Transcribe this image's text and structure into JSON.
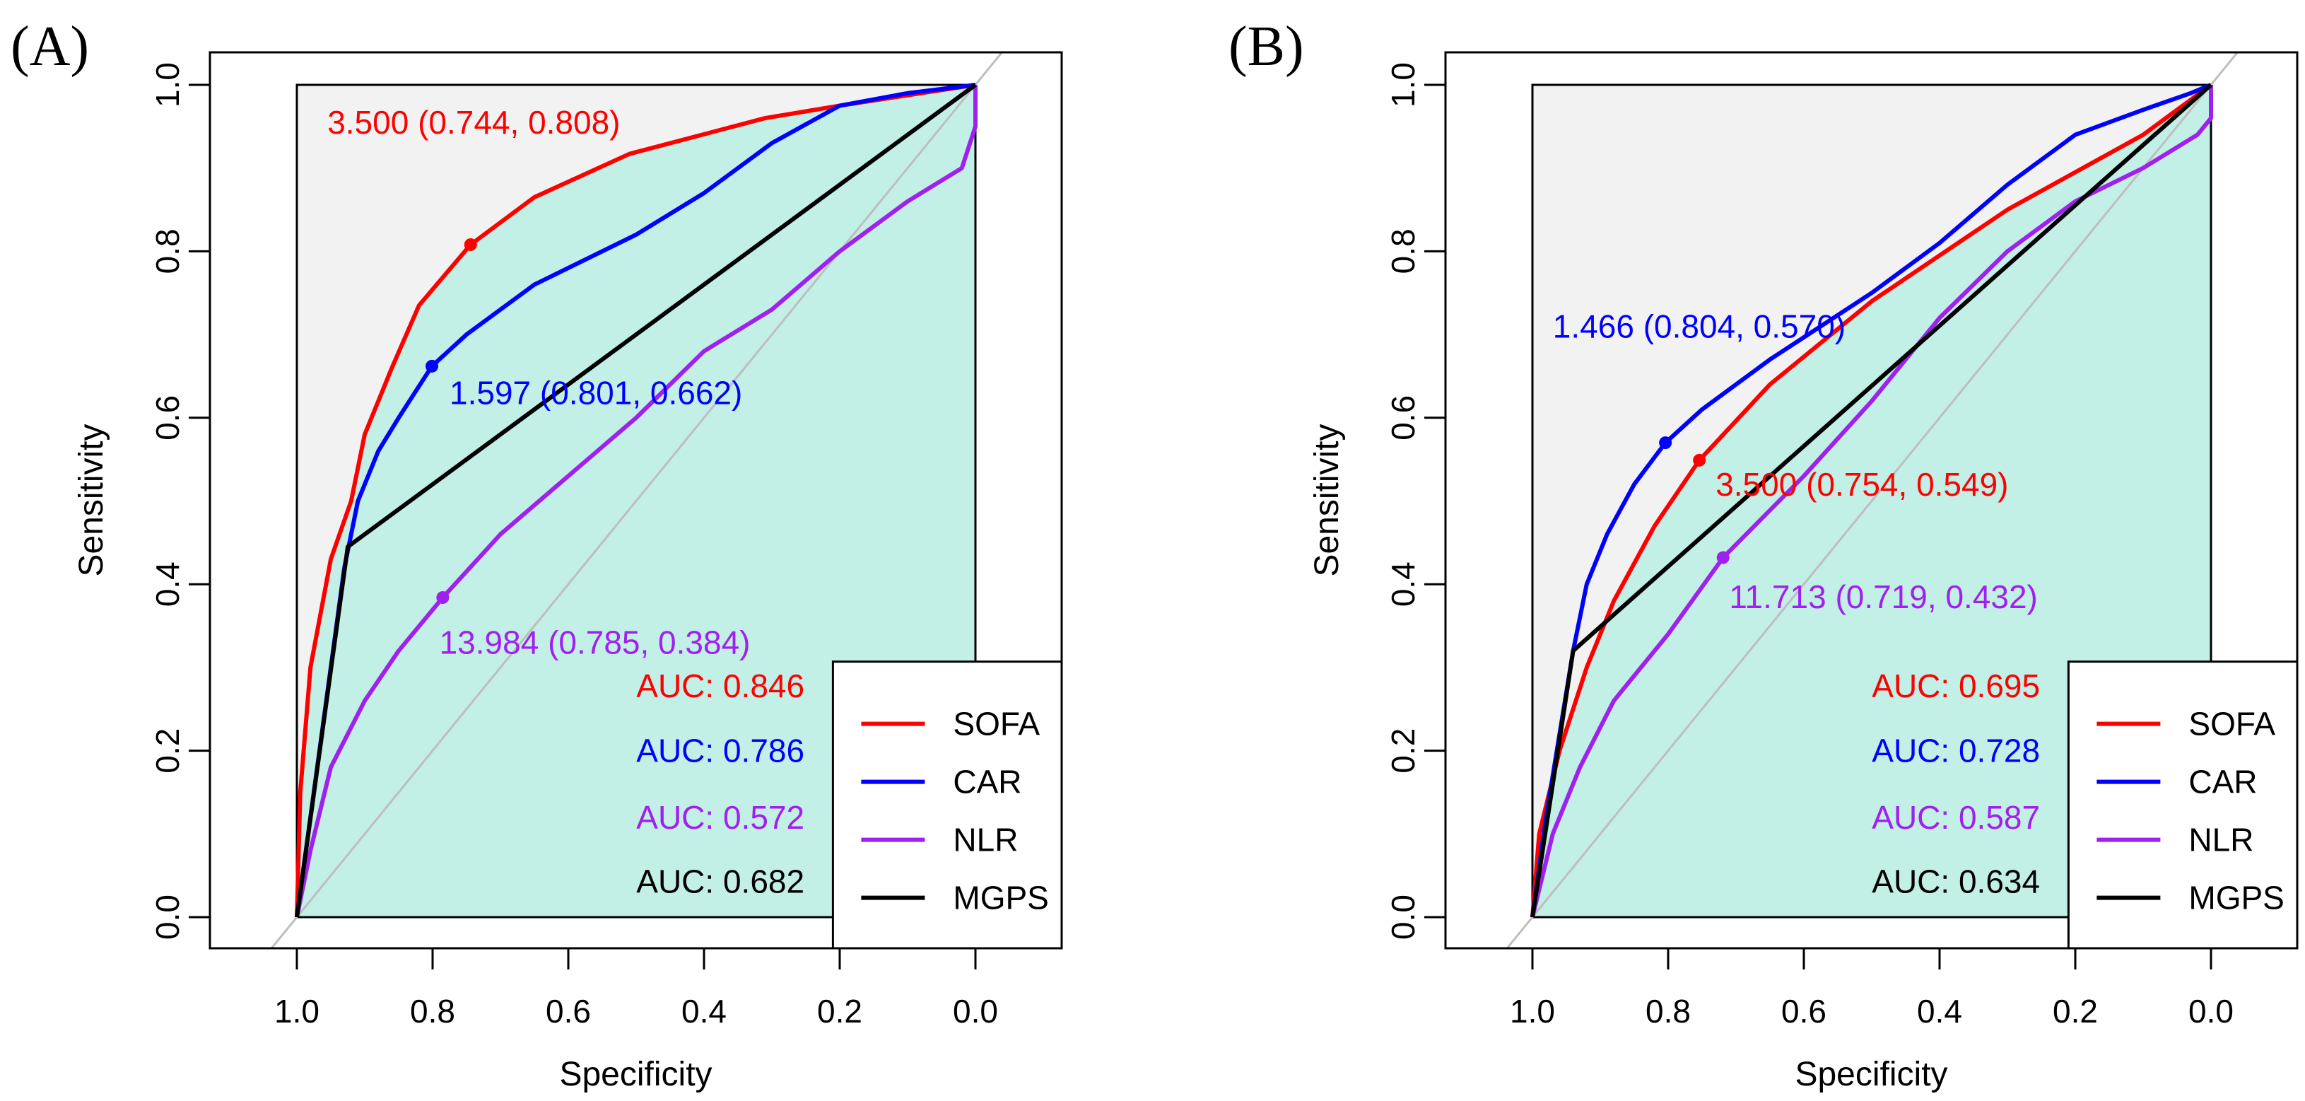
{
  "chart_data": [
    {
      "type": "line",
      "panel_label": "(A)",
      "xlabel": "Specificity",
      "ylabel": "Sensitivity",
      "xlim": [
        1.0,
        0.0
      ],
      "ylim": [
        0.0,
        1.0
      ],
      "xticks": [
        "1.0",
        "0.8",
        "0.6",
        "0.4",
        "0.2",
        "0.0"
      ],
      "yticks": [
        "0.0",
        "0.2",
        "0.4",
        "0.6",
        "0.8",
        "1.0"
      ],
      "legend_position": "bottom-right",
      "fill_series": "SOFA",
      "series": [
        {
          "name": "SOFA",
          "color": "#ff0000",
          "auc_label": "AUC: 0.846",
          "threshold": {
            "label": "3.500 (0.744, 0.808)",
            "spec": 0.744,
            "sens": 0.808,
            "label_spec": 0.955,
            "label_sens": 0.955,
            "anchor": "start"
          },
          "points": [
            [
              1,
              0
            ],
            [
              0.995,
              0.15
            ],
            [
              0.98,
              0.3
            ],
            [
              0.95,
              0.43
            ],
            [
              0.92,
              0.5
            ],
            [
              0.9,
              0.58
            ],
            [
              0.86,
              0.66
            ],
            [
              0.82,
              0.735
            ],
            [
              0.744,
              0.808
            ],
            [
              0.65,
              0.865
            ],
            [
              0.51,
              0.917
            ],
            [
              0.31,
              0.96
            ],
            [
              0.2,
              0.975
            ],
            [
              0,
              1
            ]
          ]
        },
        {
          "name": "CAR",
          "color": "#0000ff",
          "auc_label": "AUC: 0.786",
          "threshold": {
            "label": "1.597 (0.801, 0.662)",
            "spec": 0.801,
            "sens": 0.662,
            "label_spec": 0.775,
            "label_sens": 0.63,
            "anchor": "start"
          },
          "points": [
            [
              1,
              0
            ],
            [
              0.98,
              0.12
            ],
            [
              0.95,
              0.3
            ],
            [
              0.93,
              0.42
            ],
            [
              0.91,
              0.5
            ],
            [
              0.88,
              0.56
            ],
            [
              0.85,
              0.6
            ],
            [
              0.801,
              0.662
            ],
            [
              0.75,
              0.7
            ],
            [
              0.65,
              0.76
            ],
            [
              0.5,
              0.82
            ],
            [
              0.4,
              0.87
            ],
            [
              0.3,
              0.93
            ],
            [
              0.2,
              0.975
            ],
            [
              0.1,
              0.99
            ],
            [
              0,
              1
            ]
          ]
        },
        {
          "name": "NLR",
          "color": "#a020f0",
          "auc_label": "AUC: 0.572",
          "threshold": {
            "label": "13.984 (0.785, 0.384)",
            "spec": 0.785,
            "sens": 0.384,
            "label_spec": 0.79,
            "label_sens": 0.33,
            "anchor": "start"
          },
          "points": [
            [
              1,
              0
            ],
            [
              0.98,
              0.08
            ],
            [
              0.95,
              0.18
            ],
            [
              0.9,
              0.26
            ],
            [
              0.85,
              0.32
            ],
            [
              0.785,
              0.384
            ],
            [
              0.7,
              0.46
            ],
            [
              0.6,
              0.53
            ],
            [
              0.5,
              0.6
            ],
            [
              0.4,
              0.68
            ],
            [
              0.3,
              0.73
            ],
            [
              0.2,
              0.8
            ],
            [
              0.1,
              0.86
            ],
            [
              0.02,
              0.9
            ],
            [
              0,
              0.95
            ],
            [
              0,
              1
            ]
          ]
        },
        {
          "name": "MGPS",
          "color": "#000000",
          "auc_label": "AUC: 0.682",
          "points": [
            [
              1,
              0
            ],
            [
              0.925,
              0.445
            ],
            [
              0,
              1
            ]
          ]
        }
      ]
    },
    {
      "type": "line",
      "panel_label": "(B)",
      "xlabel": "Specificity",
      "ylabel": "Sensitivity",
      "xlim": [
        1.0,
        0.0
      ],
      "ylim": [
        0.0,
        1.0
      ],
      "xticks": [
        "1.0",
        "0.8",
        "0.6",
        "0.4",
        "0.2",
        "0.0"
      ],
      "yticks": [
        "0.0",
        "0.2",
        "0.4",
        "0.6",
        "0.8",
        "1.0"
      ],
      "legend_position": "bottom-right",
      "fill_series": "SOFA",
      "series": [
        {
          "name": "SOFA",
          "color": "#ff0000",
          "auc_label": "AUC: 0.695",
          "threshold": {
            "label": "3.500 (0.754, 0.549)",
            "spec": 0.754,
            "sens": 0.549,
            "label_spec": 0.73,
            "label_sens": 0.52,
            "anchor": "start"
          },
          "points": [
            [
              1,
              0
            ],
            [
              0.99,
              0.1
            ],
            [
              0.96,
              0.2
            ],
            [
              0.92,
              0.3
            ],
            [
              0.88,
              0.38
            ],
            [
              0.82,
              0.47
            ],
            [
              0.754,
              0.549
            ],
            [
              0.65,
              0.64
            ],
            [
              0.5,
              0.74
            ],
            [
              0.3,
              0.85
            ],
            [
              0.1,
              0.94
            ],
            [
              0,
              1
            ]
          ]
        },
        {
          "name": "CAR",
          "color": "#0000ff",
          "auc_label": "AUC: 0.728",
          "threshold": {
            "label": "1.466 (0.804, 0.570)",
            "spec": 0.804,
            "sens": 0.57,
            "label_spec": 0.97,
            "label_sens": 0.71,
            "anchor": "start"
          },
          "points": [
            [
              1,
              0
            ],
            [
              0.98,
              0.12
            ],
            [
              0.96,
              0.22
            ],
            [
              0.94,
              0.32
            ],
            [
              0.92,
              0.4
            ],
            [
              0.89,
              0.46
            ],
            [
              0.85,
              0.52
            ],
            [
              0.804,
              0.57
            ],
            [
              0.75,
              0.61
            ],
            [
              0.65,
              0.67
            ],
            [
              0.5,
              0.75
            ],
            [
              0.4,
              0.81
            ],
            [
              0.3,
              0.88
            ],
            [
              0.2,
              0.94
            ],
            [
              0.1,
              0.97
            ],
            [
              0.03,
              0.99
            ],
            [
              0,
              1
            ]
          ]
        },
        {
          "name": "NLR",
          "color": "#a020f0",
          "auc_label": "AUC: 0.587",
          "threshold": {
            "label": "11.713 (0.719, 0.432)",
            "spec": 0.719,
            "sens": 0.432,
            "label_spec": 0.71,
            "label_sens": 0.385,
            "anchor": "start"
          },
          "points": [
            [
              1,
              0
            ],
            [
              0.97,
              0.1
            ],
            [
              0.93,
              0.18
            ],
            [
              0.88,
              0.26
            ],
            [
              0.8,
              0.34
            ],
            [
              0.719,
              0.432
            ],
            [
              0.6,
              0.53
            ],
            [
              0.5,
              0.62
            ],
            [
              0.4,
              0.72
            ],
            [
              0.3,
              0.8
            ],
            [
              0.2,
              0.86
            ],
            [
              0.1,
              0.9
            ],
            [
              0.02,
              0.94
            ],
            [
              0,
              0.96
            ],
            [
              0,
              1
            ]
          ]
        },
        {
          "name": "MGPS",
          "color": "#000000",
          "auc_label": "AUC: 0.634",
          "points": [
            [
              1,
              0
            ],
            [
              0.94,
              0.32
            ],
            [
              0,
              1
            ]
          ]
        }
      ]
    }
  ]
}
